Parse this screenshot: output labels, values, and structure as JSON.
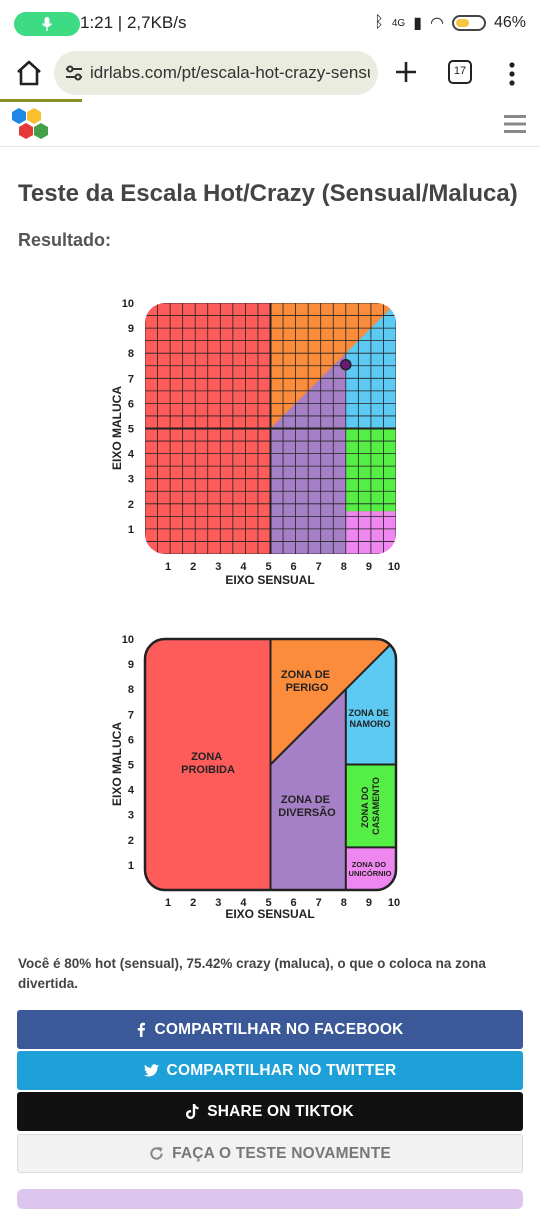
{
  "status": {
    "time_speed": "1:21 | 2,7KB/s",
    "network": "4G",
    "battery": "46%"
  },
  "browser": {
    "url": "idrlabs.com/pt/escala-hot-crazy-sensual-maluca",
    "tab_count": "17"
  },
  "page": {
    "title": "Teste da Escala Hot/Crazy (Sensual/Maluca)",
    "result_label": "Resultado:",
    "result_text": "Você é 80% hot (sensual), 75.42% crazy (maluca), o que o coloca na zona divertida."
  },
  "buttons": {
    "facebook": "COMPARTILHAR NO FACEBOOK",
    "twitter": "COMPARTILHAR NO TWITTER",
    "tiktok": "SHARE ON TIKTOK",
    "retake": "FAÇA O TESTE NOVAMENTE"
  },
  "colors": {
    "red": "#fe5b5b",
    "orange": "#fb8c3b",
    "purple": "#a680c6",
    "blue": "#5ccaf2",
    "green": "#55ee44",
    "pink": "#ee88f0",
    "facebook": "#3b5998",
    "twitter": "#1da1d8",
    "tiktok": "#111111"
  },
  "chart_data": [
    {
      "type": "scatter",
      "title": "",
      "xlabel": "EIXO SENSUAL",
      "ylabel": "EIXO MALUCA",
      "xlim": [
        0,
        10
      ],
      "ylim": [
        0,
        10
      ],
      "x_ticks": [
        "1",
        "2",
        "3",
        "4",
        "5",
        "6",
        "7",
        "8",
        "9",
        "10"
      ],
      "y_ticks": [
        "1",
        "2",
        "3",
        "4",
        "5",
        "6",
        "7",
        "8",
        "9",
        "10"
      ],
      "grid": true,
      "point": {
        "x": 8.0,
        "y": 7.542
      }
    },
    {
      "type": "diagram",
      "title": "",
      "xlabel": "EIXO SENSUAL",
      "ylabel": "EIXO MALUCA",
      "xlim": [
        0,
        10
      ],
      "ylim": [
        0,
        10
      ],
      "x_ticks": [
        "1",
        "2",
        "3",
        "4",
        "5",
        "6",
        "7",
        "8",
        "9",
        "10"
      ],
      "y_ticks": [
        "1",
        "2",
        "3",
        "4",
        "5",
        "6",
        "7",
        "8",
        "9",
        "10"
      ],
      "zones": [
        {
          "lines": [
            "ZONA",
            "PROIBIDA"
          ],
          "color": "red"
        },
        {
          "lines": [
            "ZONA DE",
            "PERIGO"
          ],
          "color": "orange"
        },
        {
          "lines": [
            "ZONA DE",
            "DIVERSÃO"
          ],
          "color": "purple"
        },
        {
          "lines": [
            "ZONA DE",
            "NAMORO"
          ],
          "color": "blue"
        },
        {
          "lines": [
            "ZONA DO",
            "CASAMENTO"
          ],
          "color": "green"
        },
        {
          "lines": [
            "ZONA DO",
            "UNICÓRNIO"
          ],
          "color": "pink"
        }
      ]
    }
  ]
}
